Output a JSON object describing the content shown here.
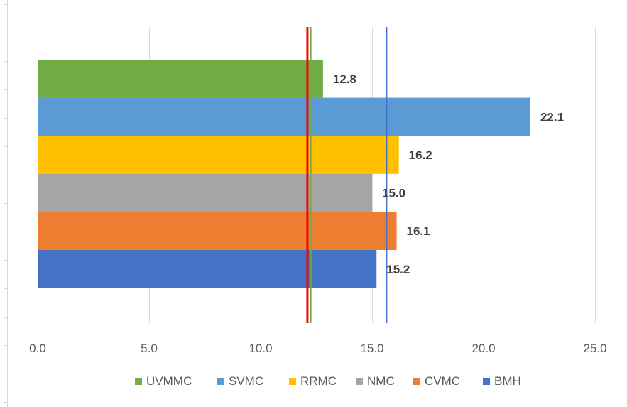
{
  "chart_data": {
    "type": "bar",
    "orientation": "horizontal",
    "title": "",
    "xlabel": "",
    "ylabel": "",
    "xlim": [
      0,
      25
    ],
    "x_ticks": [
      0,
      5,
      10,
      15,
      20,
      25
    ],
    "x_tick_labels": [
      "0.0",
      "5.0",
      "10.0",
      "15.0",
      "20.0",
      "25.0"
    ],
    "grid": "vertical",
    "legend_position": "bottom",
    "series": [
      {
        "name": "UVMMC",
        "value": 12.8,
        "label": "12.8",
        "color": "#70AD47"
      },
      {
        "name": "SVMC",
        "value": 22.1,
        "label": "22.1",
        "color": "#5B9BD5"
      },
      {
        "name": "RRMC",
        "value": 16.2,
        "label": "16.2",
        "color": "#FFC000"
      },
      {
        "name": "NMC",
        "value": 15.0,
        "label": "15.0",
        "color": "#A5A5A5"
      },
      {
        "name": "CVMC",
        "value": 16.1,
        "label": "16.1",
        "color": "#ED7D31"
      },
      {
        "name": "BMH",
        "value": 15.2,
        "label": "15.2",
        "color": "#4472C4"
      }
    ],
    "reference_lines": [
      {
        "value": 12.1,
        "color": "#FF0000"
      },
      {
        "value": 12.25,
        "color": "#70AD47"
      },
      {
        "value": 15.65,
        "color": "#4472C4"
      }
    ]
  }
}
